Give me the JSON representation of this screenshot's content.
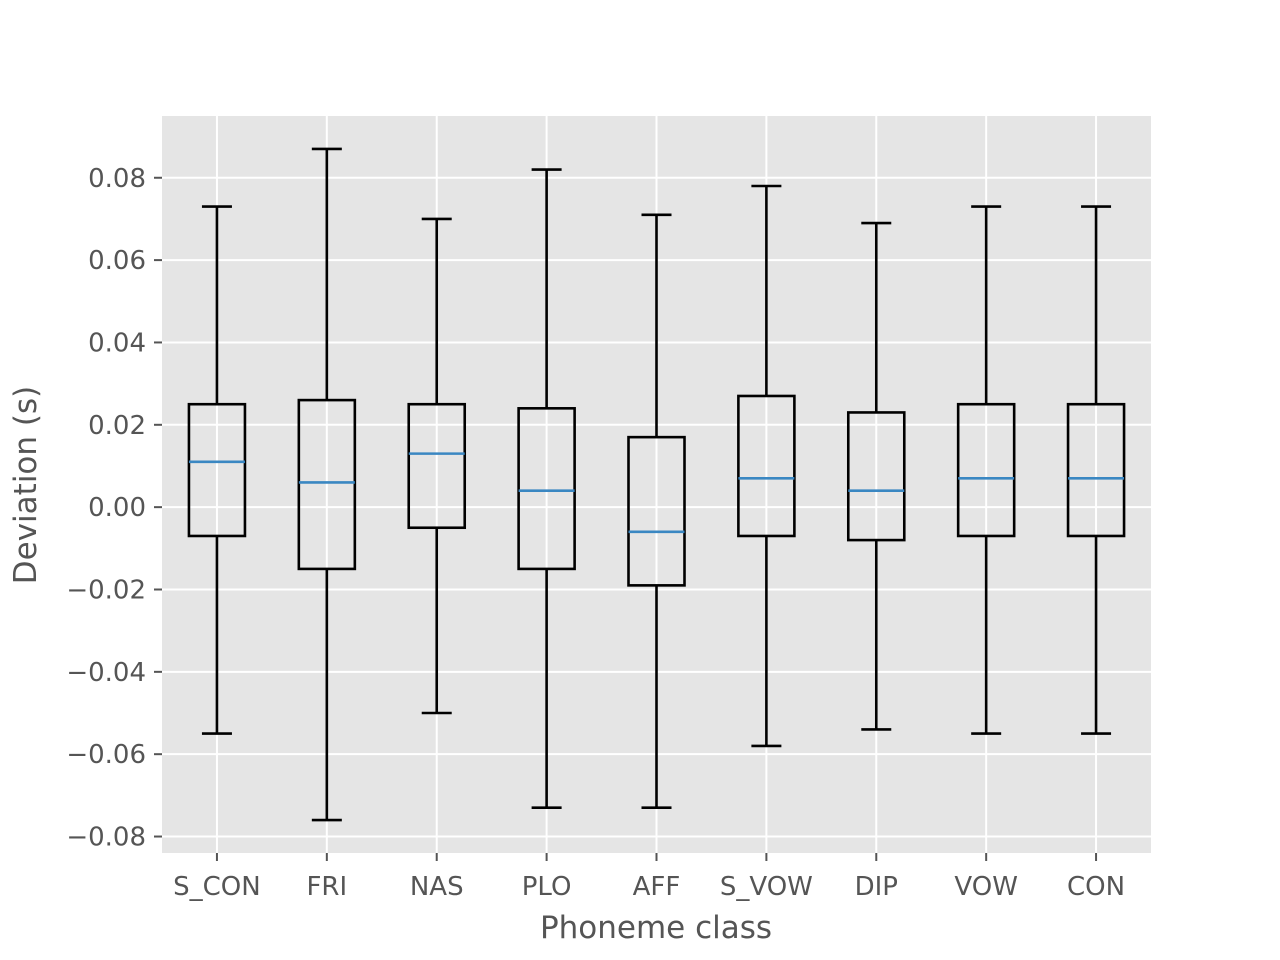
{
  "chart_data": {
    "type": "box",
    "xlabel": "Phoneme class",
    "ylabel": "Deviation (s)",
    "ylim": [
      -0.084,
      0.095
    ],
    "yticks": [
      -0.08,
      -0.06,
      -0.04,
      -0.02,
      0.0,
      0.02,
      0.04,
      0.06,
      0.08
    ],
    "ytick_labels": [
      "−0.08",
      "−0.06",
      "−0.04",
      "−0.02",
      "0.00",
      "0.02",
      "0.04",
      "0.06",
      "0.08"
    ],
    "grid": true,
    "categories": [
      "S_CON",
      "FRI",
      "NAS",
      "PLO",
      "AFF",
      "S_VOW",
      "DIP",
      "VOW",
      "CON"
    ],
    "boxes": [
      {
        "whisker_low": -0.055,
        "q1": -0.007,
        "median": 0.011,
        "q3": 0.025,
        "whisker_high": 0.073
      },
      {
        "whisker_low": -0.076,
        "q1": -0.015,
        "median": 0.006,
        "q3": 0.026,
        "whisker_high": 0.087
      },
      {
        "whisker_low": -0.05,
        "q1": -0.005,
        "median": 0.013,
        "q3": 0.025,
        "whisker_high": 0.07
      },
      {
        "whisker_low": -0.073,
        "q1": -0.015,
        "median": 0.004,
        "q3": 0.024,
        "whisker_high": 0.082
      },
      {
        "whisker_low": -0.073,
        "q1": -0.019,
        "median": -0.006,
        "q3": 0.017,
        "whisker_high": 0.071
      },
      {
        "whisker_low": -0.058,
        "q1": -0.007,
        "median": 0.007,
        "q3": 0.027,
        "whisker_high": 0.078
      },
      {
        "whisker_low": -0.054,
        "q1": -0.008,
        "median": 0.004,
        "q3": 0.023,
        "whisker_high": 0.069
      },
      {
        "whisker_low": -0.055,
        "q1": -0.007,
        "median": 0.007,
        "q3": 0.025,
        "whisker_high": 0.073
      },
      {
        "whisker_low": -0.055,
        "q1": -0.007,
        "median": 0.007,
        "q3": 0.025,
        "whisker_high": 0.073
      }
    ],
    "colors": {
      "background": "#e5e5e5",
      "grid": "#ffffff",
      "box": "#000000",
      "median": "#3a87c2",
      "text": "#555555"
    }
  }
}
